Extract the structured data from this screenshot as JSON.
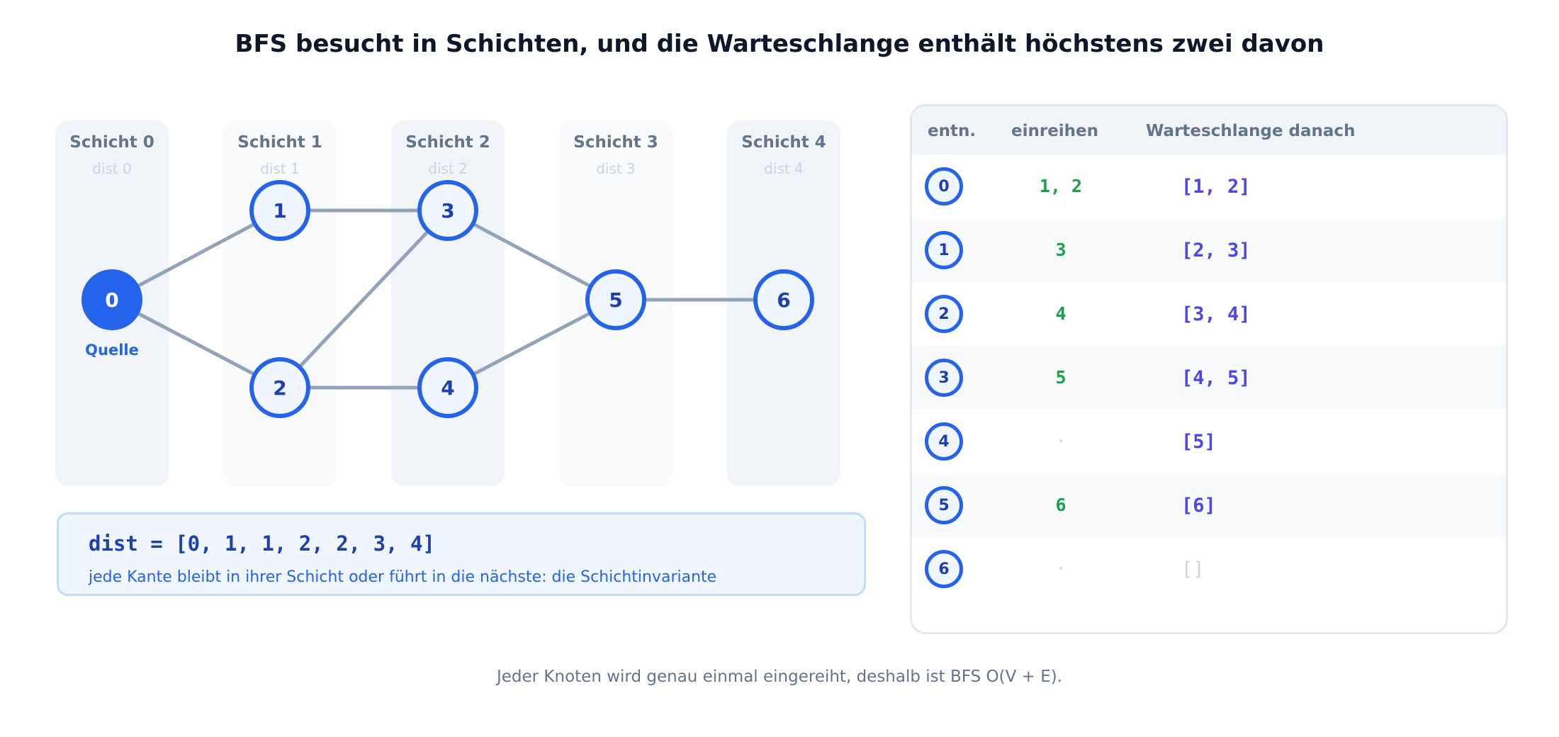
{
  "title": "BFS besucht in Schichten, und die Warteschlange enthält höchstens zwei davon",
  "layers": [
    {
      "label": "Schicht 0",
      "dist": "dist 0"
    },
    {
      "label": "Schicht 1",
      "dist": "dist 1"
    },
    {
      "label": "Schicht 2",
      "dist": "dist 2"
    },
    {
      "label": "Schicht 3",
      "dist": "dist 3"
    },
    {
      "label": "Schicht 4",
      "dist": "dist 4"
    }
  ],
  "graph": {
    "nodes": [
      {
        "id": "0",
        "layer": 0,
        "source": true
      },
      {
        "id": "1",
        "layer": 1
      },
      {
        "id": "2",
        "layer": 1
      },
      {
        "id": "3",
        "layer": 2
      },
      {
        "id": "4",
        "layer": 2
      },
      {
        "id": "5",
        "layer": 3
      },
      {
        "id": "6",
        "layer": 4
      }
    ],
    "edges": [
      [
        "0",
        "1"
      ],
      [
        "0",
        "2"
      ],
      [
        "1",
        "3"
      ],
      [
        "2",
        "3"
      ],
      [
        "2",
        "4"
      ],
      [
        "3",
        "5"
      ],
      [
        "4",
        "5"
      ],
      [
        "5",
        "6"
      ]
    ],
    "source_label": "Quelle"
  },
  "dist_box": {
    "code": "dist = [0, 1, 1, 2, 2, 3, 4]",
    "note": "jede Kante bleibt in ihrer Schicht oder führt in die nächste: die Schichtinvariante"
  },
  "table": {
    "headers": {
      "dequeue": "entn.",
      "enqueue": "einreihen",
      "queue": "Warteschlange danach"
    },
    "rows": [
      {
        "node": "0",
        "enqueued": "1, 2",
        "queue": "[1, 2]"
      },
      {
        "node": "1",
        "enqueued": "3",
        "queue": "[2, 3]"
      },
      {
        "node": "2",
        "enqueued": "4",
        "queue": "[3, 4]"
      },
      {
        "node": "3",
        "enqueued": "5",
        "queue": "[4, 5]"
      },
      {
        "node": "4",
        "enqueued": "·",
        "queue": "[5]"
      },
      {
        "node": "5",
        "enqueued": "6",
        "queue": "[6]"
      },
      {
        "node": "6",
        "enqueued": "·",
        "queue": "[]"
      }
    ]
  },
  "colors": {
    "node_stroke": "#2563eb",
    "node_fill": "#eff6ff",
    "source_fill": "#2563eb",
    "edge": "#94a3b8",
    "enqueue_text": "#16a34a",
    "queue_text": "#4f46e5"
  },
  "footnote": "Jeder Knoten wird genau einmal eingereiht, deshalb ist BFS O(V + E)."
}
